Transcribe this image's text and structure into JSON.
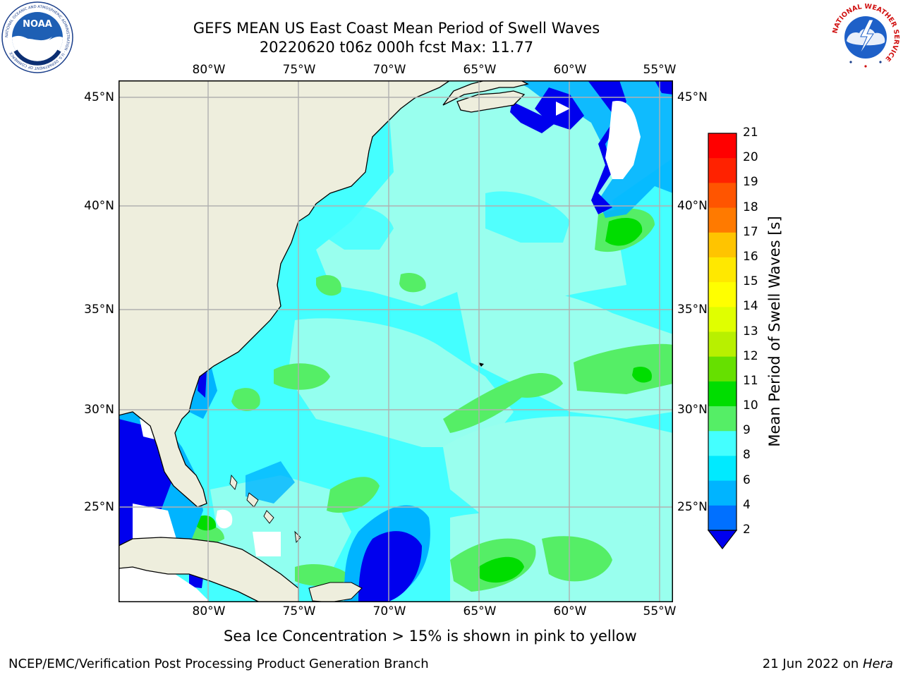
{
  "header": {
    "title_line1": "GEFS MEAN US East Coast Mean Period of Swell Waves",
    "title_line2": "20220620 t06z 000h fcst   Max: 11.77"
  },
  "logos": {
    "noaa_text": "NOAA",
    "noaa_ring_text": "NATIONAL OCEANIC AND ATMOSPHERIC ADMINISTRATION · U.S. DEPARTMENT OF COMMERCE",
    "nws_ring_text": "NATIONAL WEATHER SERVICE"
  },
  "map": {
    "lon_ticks": [
      "80°W",
      "75°W",
      "70°W",
      "65°W",
      "60°W",
      "55°W"
    ],
    "lat_ticks": [
      "45°N",
      "40°N",
      "35°N",
      "30°N",
      "25°N"
    ],
    "colors": {
      "land": "#eeeedd",
      "grid": "#b0b0b0",
      "coast": "#000000",
      "no_data": "#ffffff"
    }
  },
  "colorbar": {
    "title": "Mean Period of Swell Waves [s]",
    "labels": [
      "21",
      "20",
      "19",
      "18",
      "17",
      "16",
      "15",
      "14",
      "13",
      "12",
      "11",
      "10",
      "9",
      "8",
      "6",
      "4",
      "2"
    ],
    "colors": [
      "#ff0000",
      "#ff2200",
      "#ff5500",
      "#ff7a00",
      "#ff9f00",
      "#ffc400",
      "#ffe800",
      "#ffff00",
      "#e0ff00",
      "#b8f000",
      "#66e000",
      "#00dd00",
      "#55ee66",
      "#99ffee",
      "#44ffff",
      "#00eaff",
      "#00b4ff",
      "#0070ff",
      "#0000ee"
    ]
  },
  "caption": "Sea Ice Concentration > 15% is shown in pink to yellow",
  "footer": {
    "left": "NCEP/EMC/Verification Post Processing Product Generation Branch",
    "right_date": "21 Jun 2022 on ",
    "right_machine": "Hera"
  }
}
